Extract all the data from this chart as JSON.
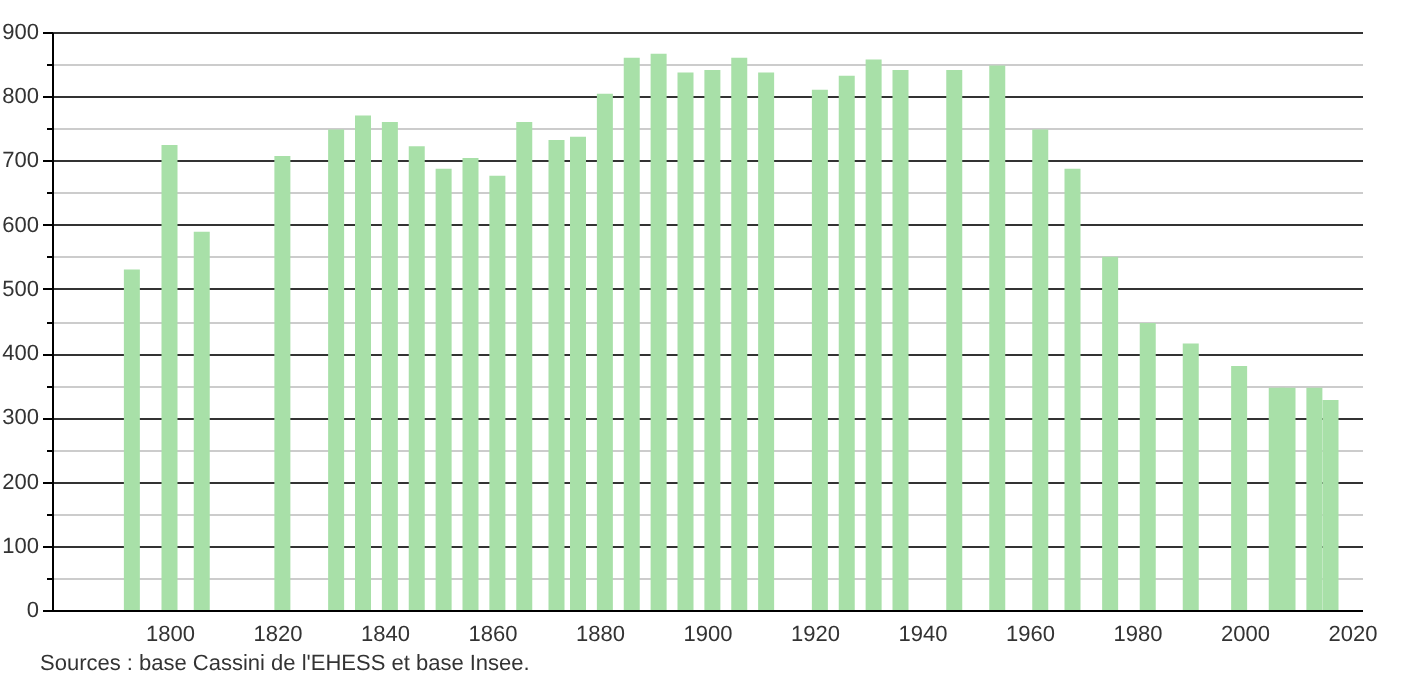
{
  "chart_data": {
    "type": "bar",
    "x": [
      1793,
      1800,
      1806,
      1821,
      1831,
      1836,
      1841,
      1846,
      1851,
      1856,
      1861,
      1866,
      1872,
      1876,
      1881,
      1886,
      1891,
      1896,
      1901,
      1906,
      1911,
      1921,
      1926,
      1931,
      1936,
      1946,
      1954,
      1962,
      1968,
      1975,
      1982,
      1990,
      1999,
      2006,
      2008,
      2013,
      2016
    ],
    "values": [
      530,
      724,
      589,
      707,
      748,
      770,
      760,
      722,
      687,
      704,
      676,
      760,
      732,
      737,
      804,
      860,
      866,
      837,
      841,
      860,
      837,
      810,
      832,
      857,
      841,
      841,
      848,
      748,
      687,
      550,
      447,
      415,
      380,
      346,
      346,
      346,
      327
    ],
    "color": "#a8e0a8",
    "xlim": [
      1780,
      2020
    ],
    "xticks": [
      1800,
      1820,
      1840,
      1860,
      1880,
      1900,
      1920,
      1940,
      1960,
      1980,
      2000,
      2020
    ],
    "ylim": [
      0,
      900
    ],
    "yticks": [
      0,
      {
        "value": 50,
        "label": null
      },
      100,
      {
        "value": 150,
        "label": null
      },
      200,
      {
        "value": 250,
        "label": null
      },
      300,
      {
        "value": 350,
        "label": null
      },
      400,
      {
        "value": 450,
        "label": null
      },
      500,
      {
        "value": 550,
        "label": null
      },
      600,
      {
        "value": 650,
        "label": null
      },
      700,
      {
        "value": 750,
        "label": null
      },
      800,
      {
        "value": 850,
        "label": null
      },
      900
    ],
    "grid": "y",
    "annotations": [
      "Sources : base Cassini de l'EHESS et base Insee."
    ]
  }
}
